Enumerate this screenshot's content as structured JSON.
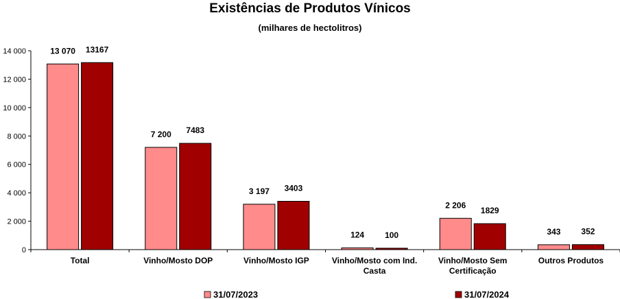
{
  "chart_data": {
    "type": "bar",
    "title": "Existências de Produtos Vínicos",
    "subtitle": "(milhares de hectolitros)",
    "categories": [
      [
        "Total"
      ],
      [
        "Vinho/Mosto DOP"
      ],
      [
        "Vinho/Mosto IGP"
      ],
      [
        "Vinho/Mosto com Ind.",
        "Casta"
      ],
      [
        "Vinho/Mosto Sem",
        "Certificação"
      ],
      [
        "Outros Produtos"
      ]
    ],
    "series": [
      {
        "name": "31/07/2023",
        "color": "#ff8b8b",
        "values": [
          13070,
          7200,
          3197,
          124,
          2206,
          343
        ],
        "labels": [
          "13 070",
          "7 200",
          "3 197",
          "124",
          "2 206",
          "343"
        ]
      },
      {
        "name": "31/07/2024",
        "color": "#a00000",
        "values": [
          13167,
          7483,
          3403,
          100,
          1829,
          352
        ],
        "labels": [
          "13167",
          "7483",
          "3403",
          "100",
          "1829",
          "352"
        ]
      }
    ],
    "ylim": [
      0,
      14000
    ],
    "yticks": [
      0,
      2000,
      4000,
      6000,
      8000,
      10000,
      12000,
      14000
    ],
    "ytick_labels": [
      "0",
      "2 000",
      "4 000",
      "6 000",
      "8 000",
      "10 000",
      "12 000",
      "14 000"
    ],
    "grid": false,
    "legend": "bottom"
  }
}
